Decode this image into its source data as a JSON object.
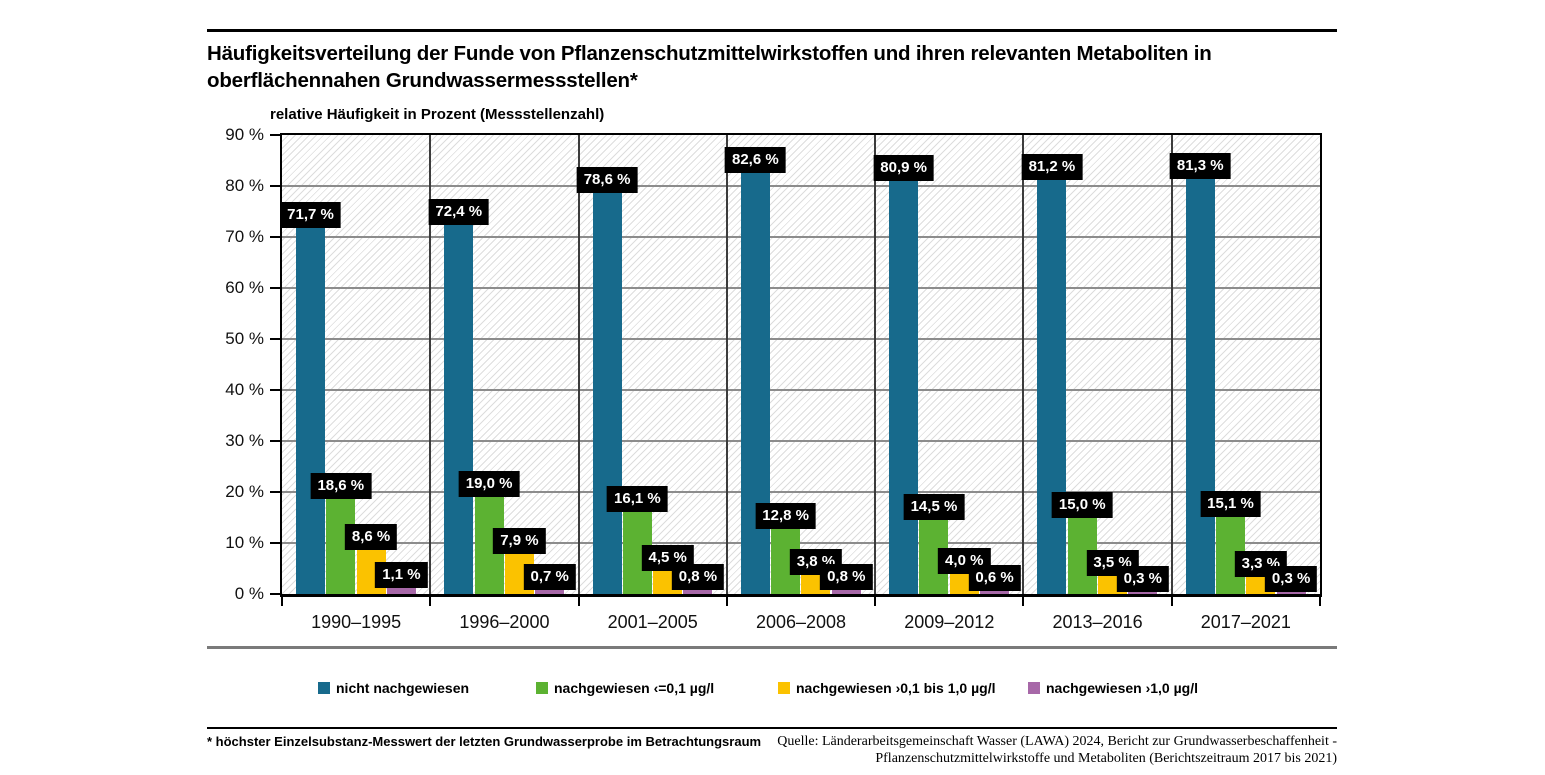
{
  "title": "Häufigkeitsverteilung der Funde von Pflanzenschutzmittelwirkstoffen und ihren relevanten Metaboliten in oberflächennahen Grundwassermessstellen*",
  "axis_title": "relative Häufigkeit in Prozent (Messstellenzahl)",
  "footnote": "* höchster Einzelsubstanz-Messwert der letzten Grundwasserprobe im Betrachtungsraum",
  "source_line1": "Quelle: Länderarbeitsgemeinschaft Wasser (LAWA) 2024, Bericht zur Grundwasserbeschaffenheit -",
  "source_line2": "Pflanzenschutzmittelwirkstoffe und Metaboliten (Berichtszeitraum 2017 bis 2021)",
  "colors": {
    "teal": "#176a8c",
    "green": "#5cb232",
    "yellow": "#fbc200",
    "purple": "#a768a8",
    "label_box": "#000000",
    "label_text": "#ffffff",
    "gridline": "#8c8c8c",
    "separator": "#3c3c3c"
  },
  "chart_data": {
    "type": "bar",
    "title": "Häufigkeitsverteilung der Funde von Pflanzenschutzmittelwirkstoffen und ihren relevanten Metaboliten in oberflächennahen Grundwassermessstellen*",
    "ylabel": "relative Häufigkeit in Prozent (Messstellenzahl)",
    "xlabel": "",
    "ylim": [
      0,
      90
    ],
    "ytick_step": 10,
    "ytick_labels": [
      "0 %",
      "10 %",
      "20 %",
      "30 %",
      "40 %",
      "50 %",
      "60 %",
      "70 %",
      "80 %",
      "90 %"
    ],
    "grid": true,
    "legend_position": "bottom",
    "categories": [
      "1990–1995",
      "1996–2000",
      "2001–2005",
      "2006–2008",
      "2009–2012",
      "2013–2016",
      "2017–2021"
    ],
    "series": [
      {
        "name": "nicht nachgewiesen",
        "color": "#176a8c",
        "values": [
          71.7,
          72.4,
          78.6,
          82.6,
          80.9,
          81.2,
          81.3
        ],
        "labels": [
          "71,7 %",
          "72,4 %",
          "78,6 %",
          "82,6 %",
          "80,9 %",
          "81,2 %",
          "81,3 %"
        ]
      },
      {
        "name": "nachgewiesen ‹=0,1 µg/l",
        "color": "#5cb232",
        "values": [
          18.6,
          19.0,
          16.1,
          12.8,
          14.5,
          15.0,
          15.1
        ],
        "labels": [
          "18,6 %",
          "19,0 %",
          "16,1 %",
          "12,8 %",
          "14,5 %",
          "15,0 %",
          "15,1 %"
        ]
      },
      {
        "name": "nachgewiesen ›0,1 bis 1,0 µg/l",
        "color": "#fbc200",
        "values": [
          8.6,
          7.9,
          4.5,
          3.8,
          4.0,
          3.5,
          3.3
        ],
        "labels": [
          "8,6 %",
          "7,9 %",
          "4,5 %",
          "3,8 %",
          "4,0 %",
          "3,5 %",
          "3,3 %"
        ]
      },
      {
        "name": "nachgewiesen ›1,0 µg/l",
        "color": "#a768a8",
        "values": [
          1.1,
          0.7,
          0.8,
          0.8,
          0.6,
          0.3,
          0.3
        ],
        "labels": [
          "1,1 %",
          "0,7 %",
          "0,8 %",
          "0,8 %",
          "0,6 %",
          "0,3 %",
          "0,3 %"
        ]
      }
    ]
  },
  "legend": {
    "items": [
      {
        "label": "nicht nachgewiesen",
        "color": "#176a8c"
      },
      {
        "label": "nachgewiesen ‹=0,1 µg/l",
        "color": "#5cb232"
      },
      {
        "label": "nachgewiesen ›0,1 bis 1,0 µg/l",
        "color": "#fbc200"
      },
      {
        "label": "nachgewiesen ›1,0 µg/l",
        "color": "#a768a8"
      }
    ]
  }
}
